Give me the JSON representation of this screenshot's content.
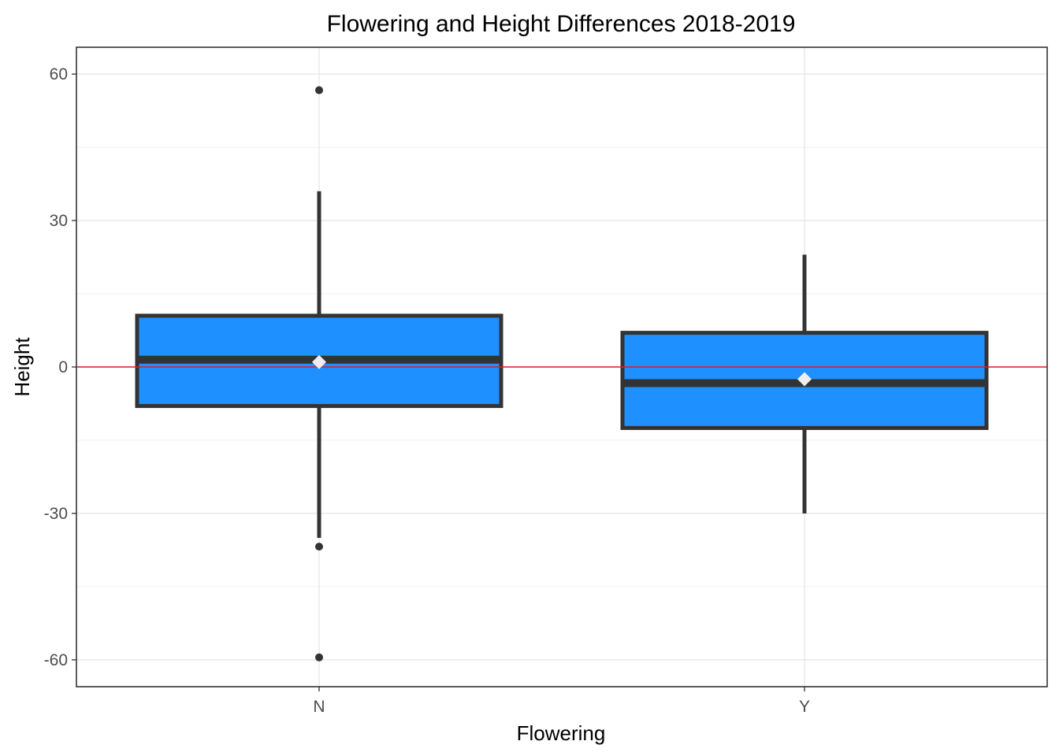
{
  "chart_data": {
    "type": "boxplot",
    "title": "Flowering and Height Differences 2018-2019",
    "xlabel": "Flowering",
    "ylabel": "Height",
    "categories": [
      "N",
      "Y"
    ],
    "ylim": [
      -65.5,
      65.5
    ],
    "yticks": [
      60,
      30,
      0,
      -30,
      -60
    ],
    "ytick_labels": [
      "60",
      "30",
      "0",
      "-30",
      "-60"
    ],
    "grid": true,
    "reference_line": {
      "y": 0,
      "color": "#e41a1c"
    },
    "box_fill": "#1e90ff",
    "box_stroke": "#333333",
    "mean_marker_color": "#eeeeee",
    "boxes": [
      {
        "category": "N",
        "whisker_low": -35,
        "q1": -8,
        "median": 1.5,
        "q3": 10.5,
        "whisker_high": 36,
        "mean": 1,
        "outliers": [
          56.7,
          -36.8,
          -59.5
        ]
      },
      {
        "category": "Y",
        "whisker_low": -30,
        "q1": -12.5,
        "median": -3.3,
        "q3": 7,
        "whisker_high": 23,
        "mean": -2.5,
        "outliers": []
      }
    ]
  }
}
